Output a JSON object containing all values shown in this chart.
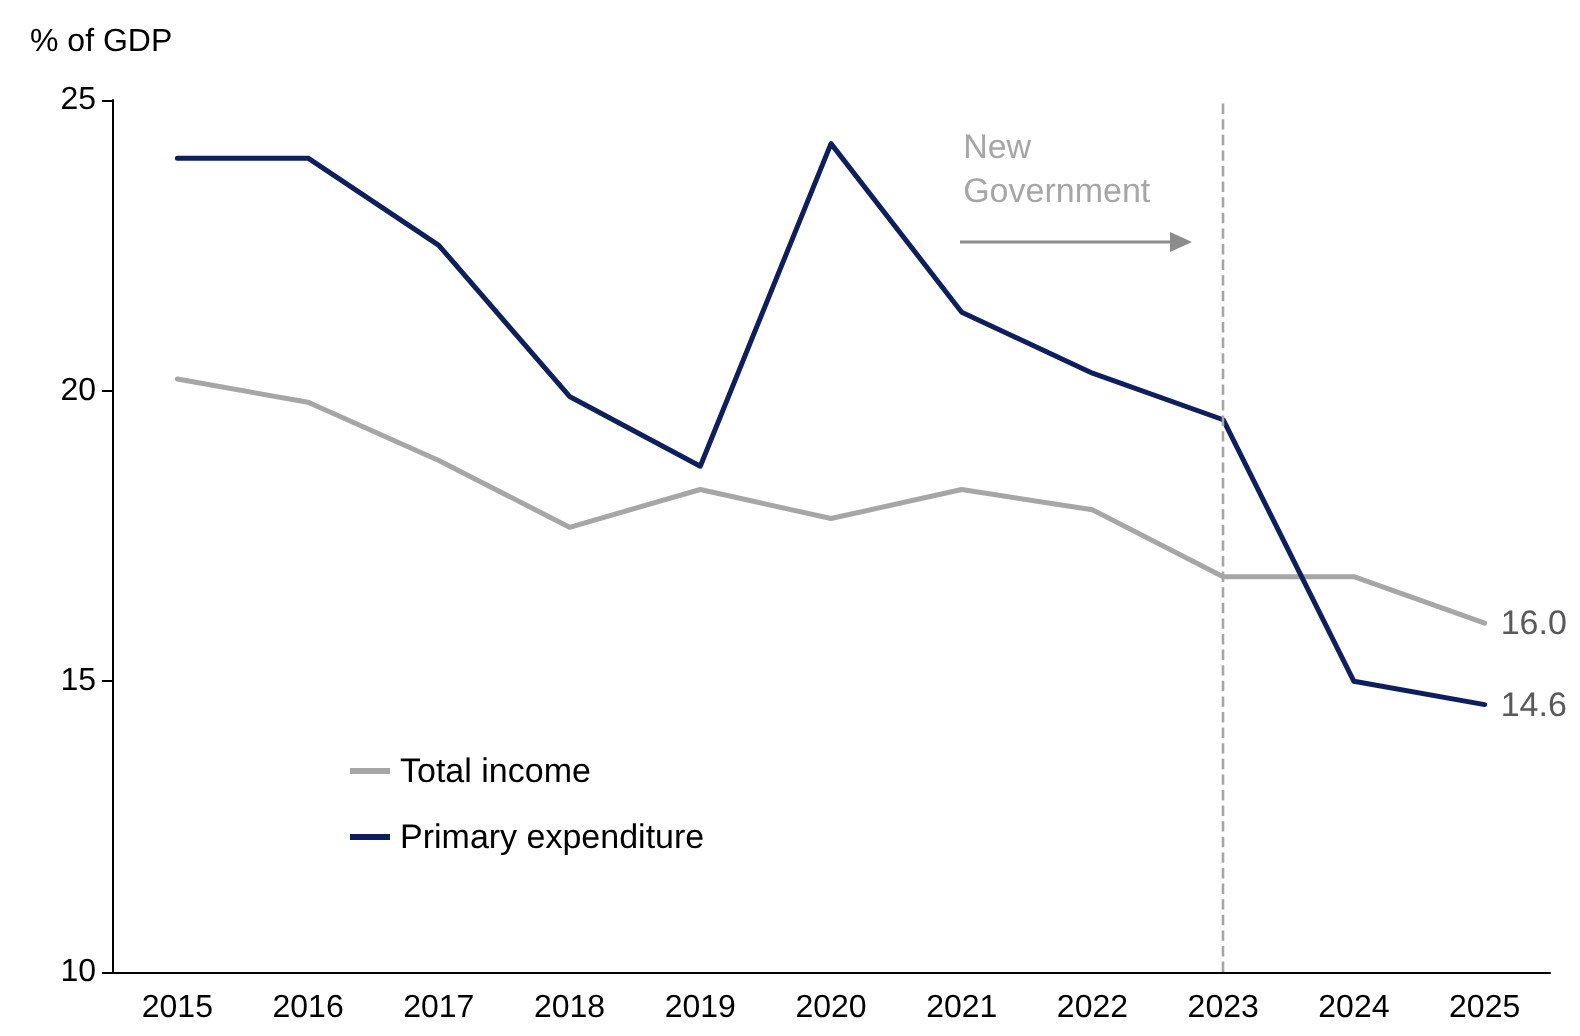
{
  "chart_data": {
    "type": "line",
    "ylabel": "% of GDP",
    "categories": [
      "2015",
      "2016",
      "2017",
      "2018",
      "2019",
      "2020",
      "2021",
      "2022",
      "2023",
      "2024",
      "2025"
    ],
    "series": [
      {
        "name": "Total income",
        "color": "#a6a6a6",
        "values": [
          20.2,
          19.8,
          18.8,
          17.65,
          18.3,
          17.8,
          18.3,
          17.95,
          16.8,
          16.8,
          16.0
        ],
        "value_labels": [
          null,
          null,
          null,
          null,
          null,
          null,
          null,
          null,
          null,
          null,
          "16.0"
        ]
      },
      {
        "name": "Primary expenditure",
        "color": "#0d1f5c",
        "values": [
          24.0,
          24.0,
          22.5,
          19.9,
          18.7,
          24.25,
          21.35,
          20.3,
          19.5,
          15.0,
          14.6
        ],
        "value_labels": [
          null,
          null,
          null,
          null,
          null,
          null,
          null,
          null,
          null,
          null,
          "14.6"
        ]
      }
    ],
    "ylim": [
      10,
      25
    ],
    "yticks": [
      10,
      15,
      20,
      25
    ],
    "grid": false,
    "legend": "bottom left",
    "marker": "none",
    "line_style": "solid",
    "ref_lines": [
      {
        "axis": "x",
        "value": "2023",
        "color": "#a6a6a6",
        "line_style": "dashed"
      }
    ],
    "annotations": [
      "New Government"
    ]
  }
}
